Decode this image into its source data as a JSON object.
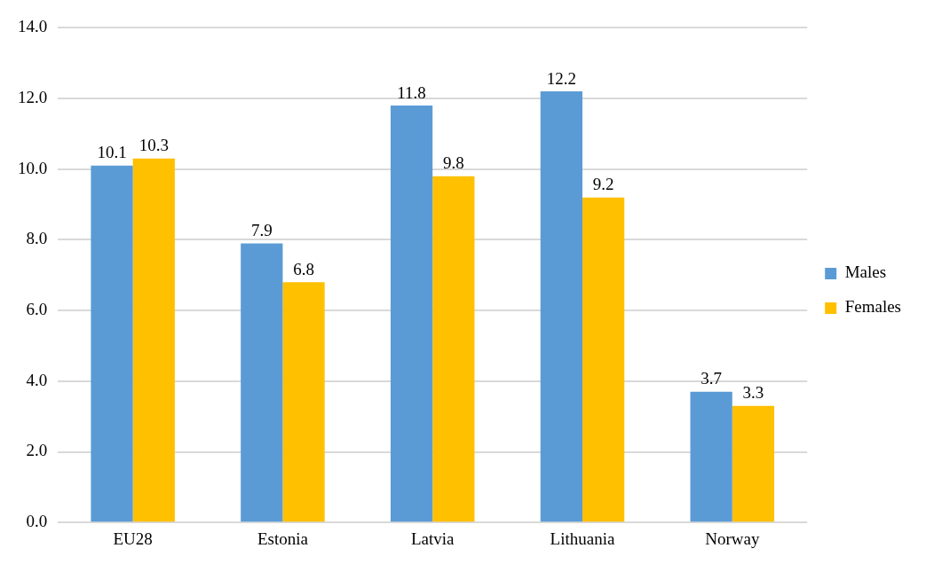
{
  "chart_data": {
    "type": "bar",
    "categories": [
      "EU28",
      "Estonia",
      "Latvia",
      "Lithuania",
      "Norway"
    ],
    "series": [
      {
        "name": "Males",
        "color": "#5b9bd5",
        "values": [
          10.1,
          7.9,
          11.8,
          12.2,
          3.7
        ]
      },
      {
        "name": "Females",
        "color": "#ffc000",
        "values": [
          10.3,
          6.8,
          9.8,
          9.2,
          3.3
        ]
      }
    ],
    "ylim": [
      0,
      14
    ],
    "yticks": [
      {
        "value": 0,
        "label": "0.0"
      },
      {
        "value": 2,
        "label": "2.0"
      },
      {
        "value": 4,
        "label": "4.0"
      },
      {
        "value": 6,
        "label": "6.0"
      },
      {
        "value": 8,
        "label": "8.0"
      },
      {
        "value": 10,
        "label": "10.0"
      },
      {
        "value": 12,
        "label": "12.0"
      },
      {
        "value": 14,
        "label": "14.0"
      }
    ],
    "grid": "y",
    "legend": "right",
    "data_labels": true
  }
}
